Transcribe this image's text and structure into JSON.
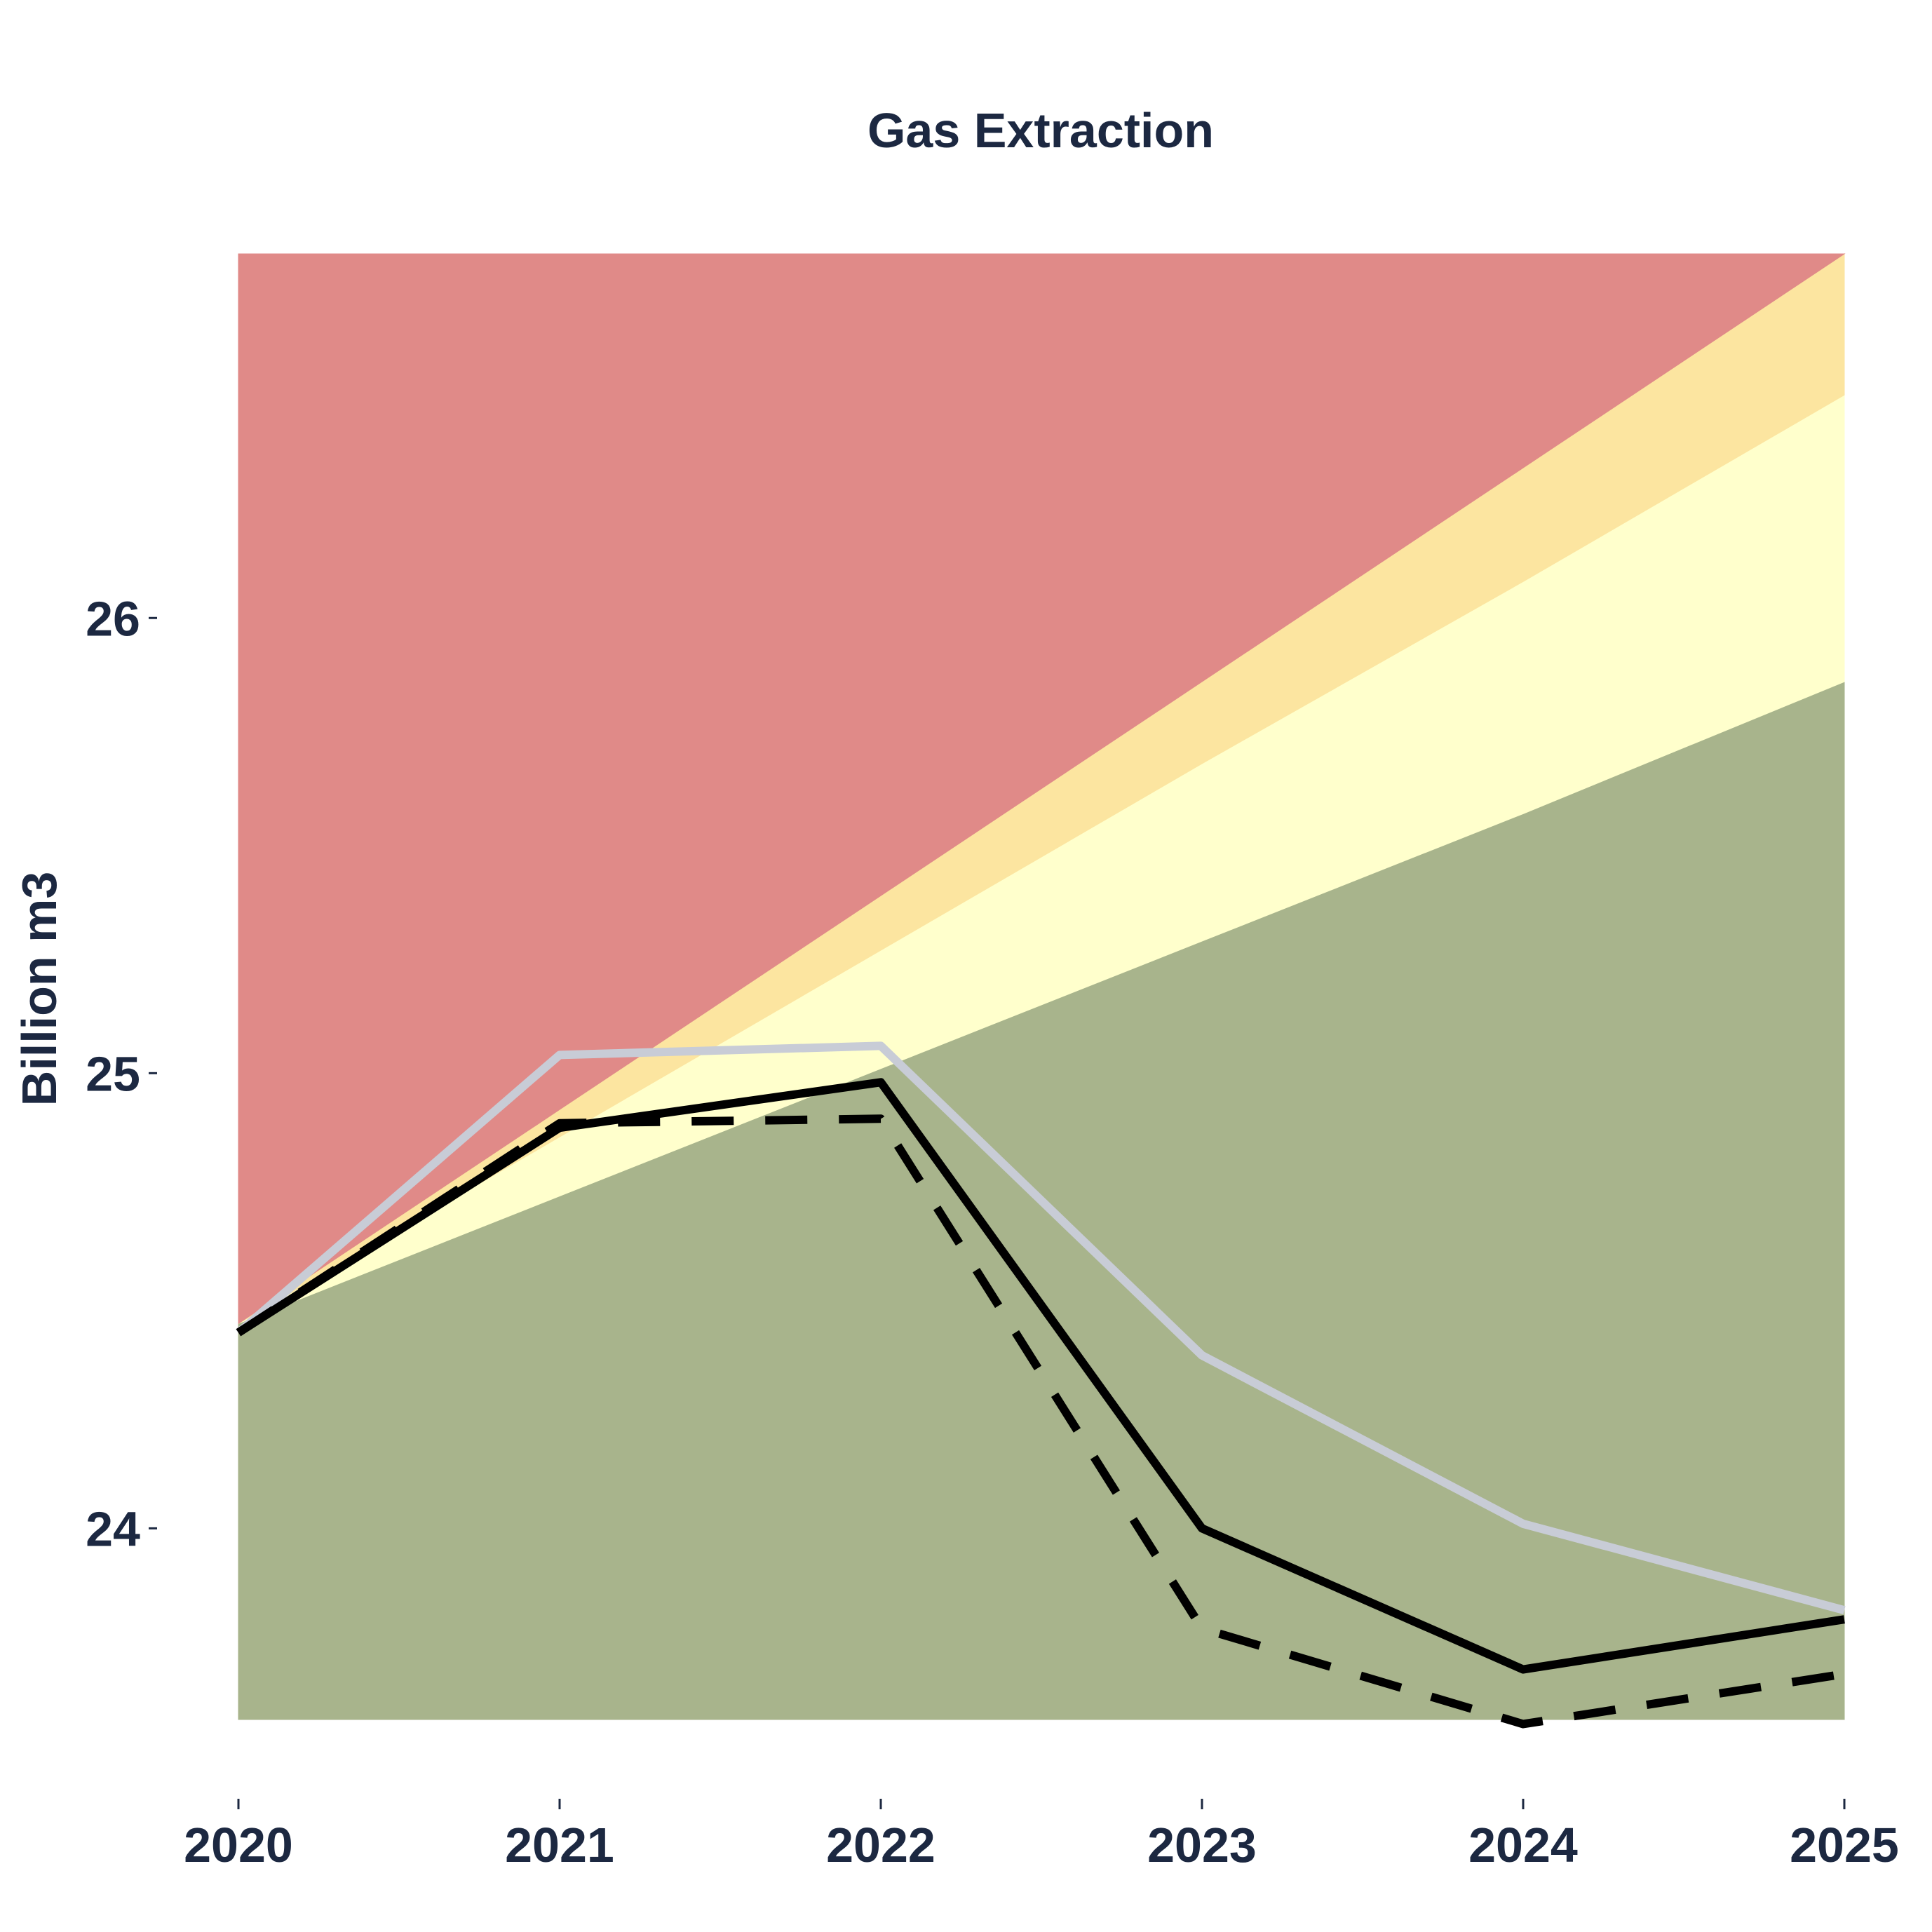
{
  "chart_data": {
    "type": "area",
    "title": "Gas Extraction",
    "xlabel": "",
    "ylabel": "Billion m3",
    "x": [
      2020,
      2021,
      2022,
      2023,
      2024,
      2025
    ],
    "x_tick_labels": [
      "2020",
      "2021",
      "2022",
      "2023",
      "2024",
      "2025"
    ],
    "y_ticks": [
      24,
      25,
      26
    ],
    "y_tick_labels": [
      "24",
      "25",
      "26"
    ],
    "xlim": [
      2020,
      2025
    ],
    "ylim": [
      23.58,
      26.8
    ],
    "grid": false,
    "legend": "none",
    "bands": [
      {
        "fill": "#a8b48c",
        "lower": [
          23.58,
          23.58,
          23.58,
          23.58,
          23.58,
          23.58
        ],
        "upper": [
          24.45,
          24.73,
          25.01,
          25.29,
          25.57,
          25.86
        ]
      },
      {
        "fill": "#ffffcc",
        "lower": [
          24.45,
          24.73,
          25.01,
          25.29,
          25.57,
          25.86
        ],
        "upper": [
          24.45,
          24.86,
          25.27,
          25.68,
          26.08,
          26.49
        ]
      },
      {
        "fill": "#fce5a0",
        "lower": [
          24.45,
          24.86,
          25.27,
          25.68,
          26.08,
          26.49
        ],
        "upper": [
          24.45,
          24.92,
          25.39,
          25.86,
          26.33,
          26.8
        ]
      },
      {
        "fill": "#e08a88",
        "lower": [
          24.45,
          24.92,
          25.39,
          25.86,
          26.33,
          26.8
        ],
        "upper": [
          26.8,
          26.8,
          26.8,
          26.8,
          26.8,
          26.8
        ]
      }
    ],
    "series": [
      {
        "color": "#c8ccd6",
        "style": "solid",
        "values": [
          24.43,
          25.04,
          25.06,
          24.38,
          24.01,
          23.82
        ]
      },
      {
        "color": "#000000",
        "style": "solid",
        "values": [
          24.43,
          24.88,
          24.98,
          24.0,
          23.69,
          23.8
        ]
      },
      {
        "color": "#000000",
        "style": "dashed",
        "values": [
          24.43,
          24.89,
          24.9,
          23.78,
          23.57,
          23.68
        ]
      }
    ]
  }
}
